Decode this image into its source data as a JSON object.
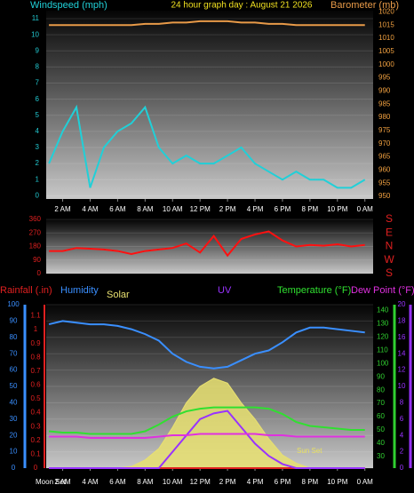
{
  "chart_data": [
    {
      "type": "line",
      "title": "24 hour graph day : August 21 2026",
      "x": [
        1,
        2,
        3,
        4,
        5,
        6,
        7,
        8,
        9,
        10,
        11,
        12,
        13,
        14,
        15,
        16,
        17,
        18,
        19,
        20,
        21,
        22,
        23,
        24
      ],
      "xlim": [
        0.8,
        24.6
      ],
      "xticks": [
        {
          "value": 2,
          "label": "2 AM"
        },
        {
          "value": 4,
          "label": "4 AM"
        },
        {
          "value": 6,
          "label": "6 AM"
        },
        {
          "value": 8,
          "label": "8 AM"
        },
        {
          "value": 10,
          "label": "10 AM"
        },
        {
          "value": 12,
          "label": "12 PM"
        },
        {
          "value": 14,
          "label": "2 PM"
        },
        {
          "value": 16,
          "label": "4 PM"
        },
        {
          "value": 18,
          "label": "6 PM"
        },
        {
          "value": 20,
          "label": "8 PM"
        },
        {
          "value": 22,
          "label": "10 PM"
        },
        {
          "value": 24,
          "label": "0 AM"
        }
      ],
      "ylim": [
        -0.2,
        11.5
      ],
      "yticks": [
        0,
        1,
        2,
        3,
        4,
        5,
        6,
        7,
        8,
        9,
        10,
        11
      ],
      "y2lim": [
        949,
        1020.5
      ],
      "y2ticks": [
        950,
        955,
        960,
        965,
        970,
        975,
        980,
        985,
        990,
        995,
        1000,
        1005,
        1010,
        1015,
        1020
      ],
      "axis_colors": {
        "y": "#22c8d0",
        "y2": "#f0a040"
      },
      "grid": true,
      "series": [
        {
          "name": "Windspeed (mph)",
          "color": "#20d0d8",
          "axis": "y",
          "values": [
            2,
            4,
            5.5,
            0.5,
            3,
            4,
            4.5,
            5.5,
            3,
            2,
            2.5,
            2,
            2,
            2.5,
            3,
            2,
            1.5,
            1,
            1.5,
            1,
            1,
            0.5,
            0.5,
            1
          ]
        },
        {
          "name": "Barometer (mb)",
          "color": "#e89a48",
          "axis": "y2",
          "values": [
            1015,
            1015,
            1015,
            1015,
            1015,
            1015,
            1015,
            1015.5,
            1015.5,
            1016,
            1016,
            1016.5,
            1016.5,
            1016.5,
            1016,
            1016,
            1015.5,
            1015.5,
            1015,
            1015,
            1015,
            1015,
            1015,
            1015
          ]
        }
      ]
    },
    {
      "type": "line",
      "x": [
        1,
        2,
        3,
        4,
        5,
        6,
        7,
        8,
        9,
        10,
        11,
        12,
        13,
        14,
        15,
        16,
        17,
        18,
        19,
        20,
        21,
        22,
        23,
        24
      ],
      "xlim": [
        0.8,
        24.6
      ],
      "ylim": [
        0,
        360
      ],
      "yticks": [
        0,
        90,
        180,
        270,
        360
      ],
      "y2lim": [
        0,
        360
      ],
      "y2ticks": [
        {
          "value": 0,
          "label": "S"
        },
        {
          "value": 90,
          "label": "W"
        },
        {
          "value": 180,
          "label": "N"
        },
        {
          "value": 270,
          "label": "E"
        },
        {
          "value": 360,
          "label": "S"
        }
      ],
      "axis_colors": {
        "y": "#e02020",
        "y2": "#e02020"
      },
      "grid": true,
      "series": [
        {
          "color": "#ff1010",
          "axis": "y",
          "values": [
            150,
            150,
            170,
            165,
            160,
            150,
            130,
            150,
            160,
            170,
            200,
            140,
            250,
            120,
            230,
            260,
            280,
            220,
            180,
            190,
            185,
            195,
            180,
            190
          ]
        }
      ]
    },
    {
      "type": "line",
      "x": [
        1,
        2,
        3,
        4,
        5,
        6,
        7,
        8,
        9,
        10,
        11,
        12,
        13,
        14,
        15,
        16,
        17,
        18,
        19,
        20,
        21,
        22,
        23,
        24
      ],
      "xlim": [
        0.8,
        24.6
      ],
      "xticks": [
        {
          "value": 2,
          "label": "2 AM"
        },
        {
          "value": 4,
          "label": "4 AM"
        },
        {
          "value": 6,
          "label": "6 AM"
        },
        {
          "value": 8,
          "label": "8 AM"
        },
        {
          "value": 10,
          "label": "10 AM"
        },
        {
          "value": 12,
          "label": "12 PM"
        },
        {
          "value": 14,
          "label": "2 PM"
        },
        {
          "value": 16,
          "label": "4 PM"
        },
        {
          "value": 18,
          "label": "6 PM"
        },
        {
          "value": 20,
          "label": "8 PM"
        },
        {
          "value": 22,
          "label": "10 PM"
        },
        {
          "value": 24,
          "label": "0 AM"
        }
      ],
      "ylim": [
        0,
        100
      ],
      "yticks": [
        0,
        10,
        20,
        30,
        40,
        50,
        60,
        70,
        80,
        90,
        100
      ],
      "y2lim": [
        0,
        1.18
      ],
      "y2ticks": [
        0,
        0.1,
        0.2,
        0.3,
        0.4,
        0.5,
        0.6,
        0.7,
        0.8,
        0.9,
        1,
        1.1
      ],
      "y3lim": [
        21.2,
        144.4
      ],
      "y3ticks": [
        30,
        40,
        50,
        60,
        70,
        80,
        90,
        100,
        110,
        120,
        130,
        140
      ],
      "y4lim": [
        0,
        20
      ],
      "y4ticks": [
        0,
        2,
        4,
        6,
        8,
        10,
        12,
        14,
        16,
        18,
        20
      ],
      "axis_colors": {
        "y": "#3a8fff",
        "y2": "#e02020",
        "y3": "#30d030",
        "y4": "#9933ff"
      },
      "grid": true,
      "annotations": [
        "Moon Set",
        "Sun Set"
      ],
      "series": [
        {
          "name": "Solar",
          "color": "#e8e070",
          "axis": "y",
          "kind": "area",
          "values": [
            0,
            0,
            0,
            0,
            0,
            0,
            1,
            5,
            12,
            25,
            40,
            50,
            55,
            52,
            40,
            30,
            18,
            8,
            3,
            0,
            0,
            0,
            0,
            0
          ]
        },
        {
          "name": "Rainfall (.in)",
          "color": "#e02020",
          "axis": "y2",
          "values": [
            0,
            0,
            0,
            0,
            0,
            0,
            0,
            0,
            0,
            0,
            0,
            0,
            0,
            0,
            0,
            0,
            0,
            0,
            0,
            0,
            0,
            0,
            0,
            0
          ]
        },
        {
          "name": "Humidity",
          "color": "#3a8fff",
          "axis": "y",
          "values": [
            88,
            90,
            89,
            88,
            88,
            87,
            85,
            82,
            78,
            70,
            65,
            62,
            61,
            62,
            66,
            70,
            72,
            77,
            83,
            86,
            86,
            85,
            84,
            83
          ]
        },
        {
          "name": "UV",
          "color": "#9933ff",
          "axis": "y4",
          "values": [
            0,
            0,
            0,
            0,
            0,
            0,
            0,
            0,
            0,
            2,
            4,
            6,
            6.7,
            7,
            5,
            3,
            1.5,
            0.5,
            0,
            0,
            0,
            0,
            0,
            0
          ]
        },
        {
          "name": "Temperature (°F)",
          "color": "#30e030",
          "axis": "y3",
          "values": [
            49,
            48,
            48,
            47,
            47,
            47,
            47,
            49,
            54,
            60,
            64,
            66,
            67,
            67,
            67,
            67,
            66,
            62,
            56,
            53,
            52,
            51,
            50,
            50
          ]
        },
        {
          "name": "Dew Point (°F)",
          "color": "#e030e0",
          "axis": "y3",
          "values": [
            45,
            45,
            45,
            44,
            44,
            44,
            44,
            44,
            45,
            46,
            46,
            47,
            47,
            47,
            47,
            47,
            46,
            46,
            45,
            45,
            45,
            45,
            45,
            45
          ]
        }
      ]
    }
  ]
}
